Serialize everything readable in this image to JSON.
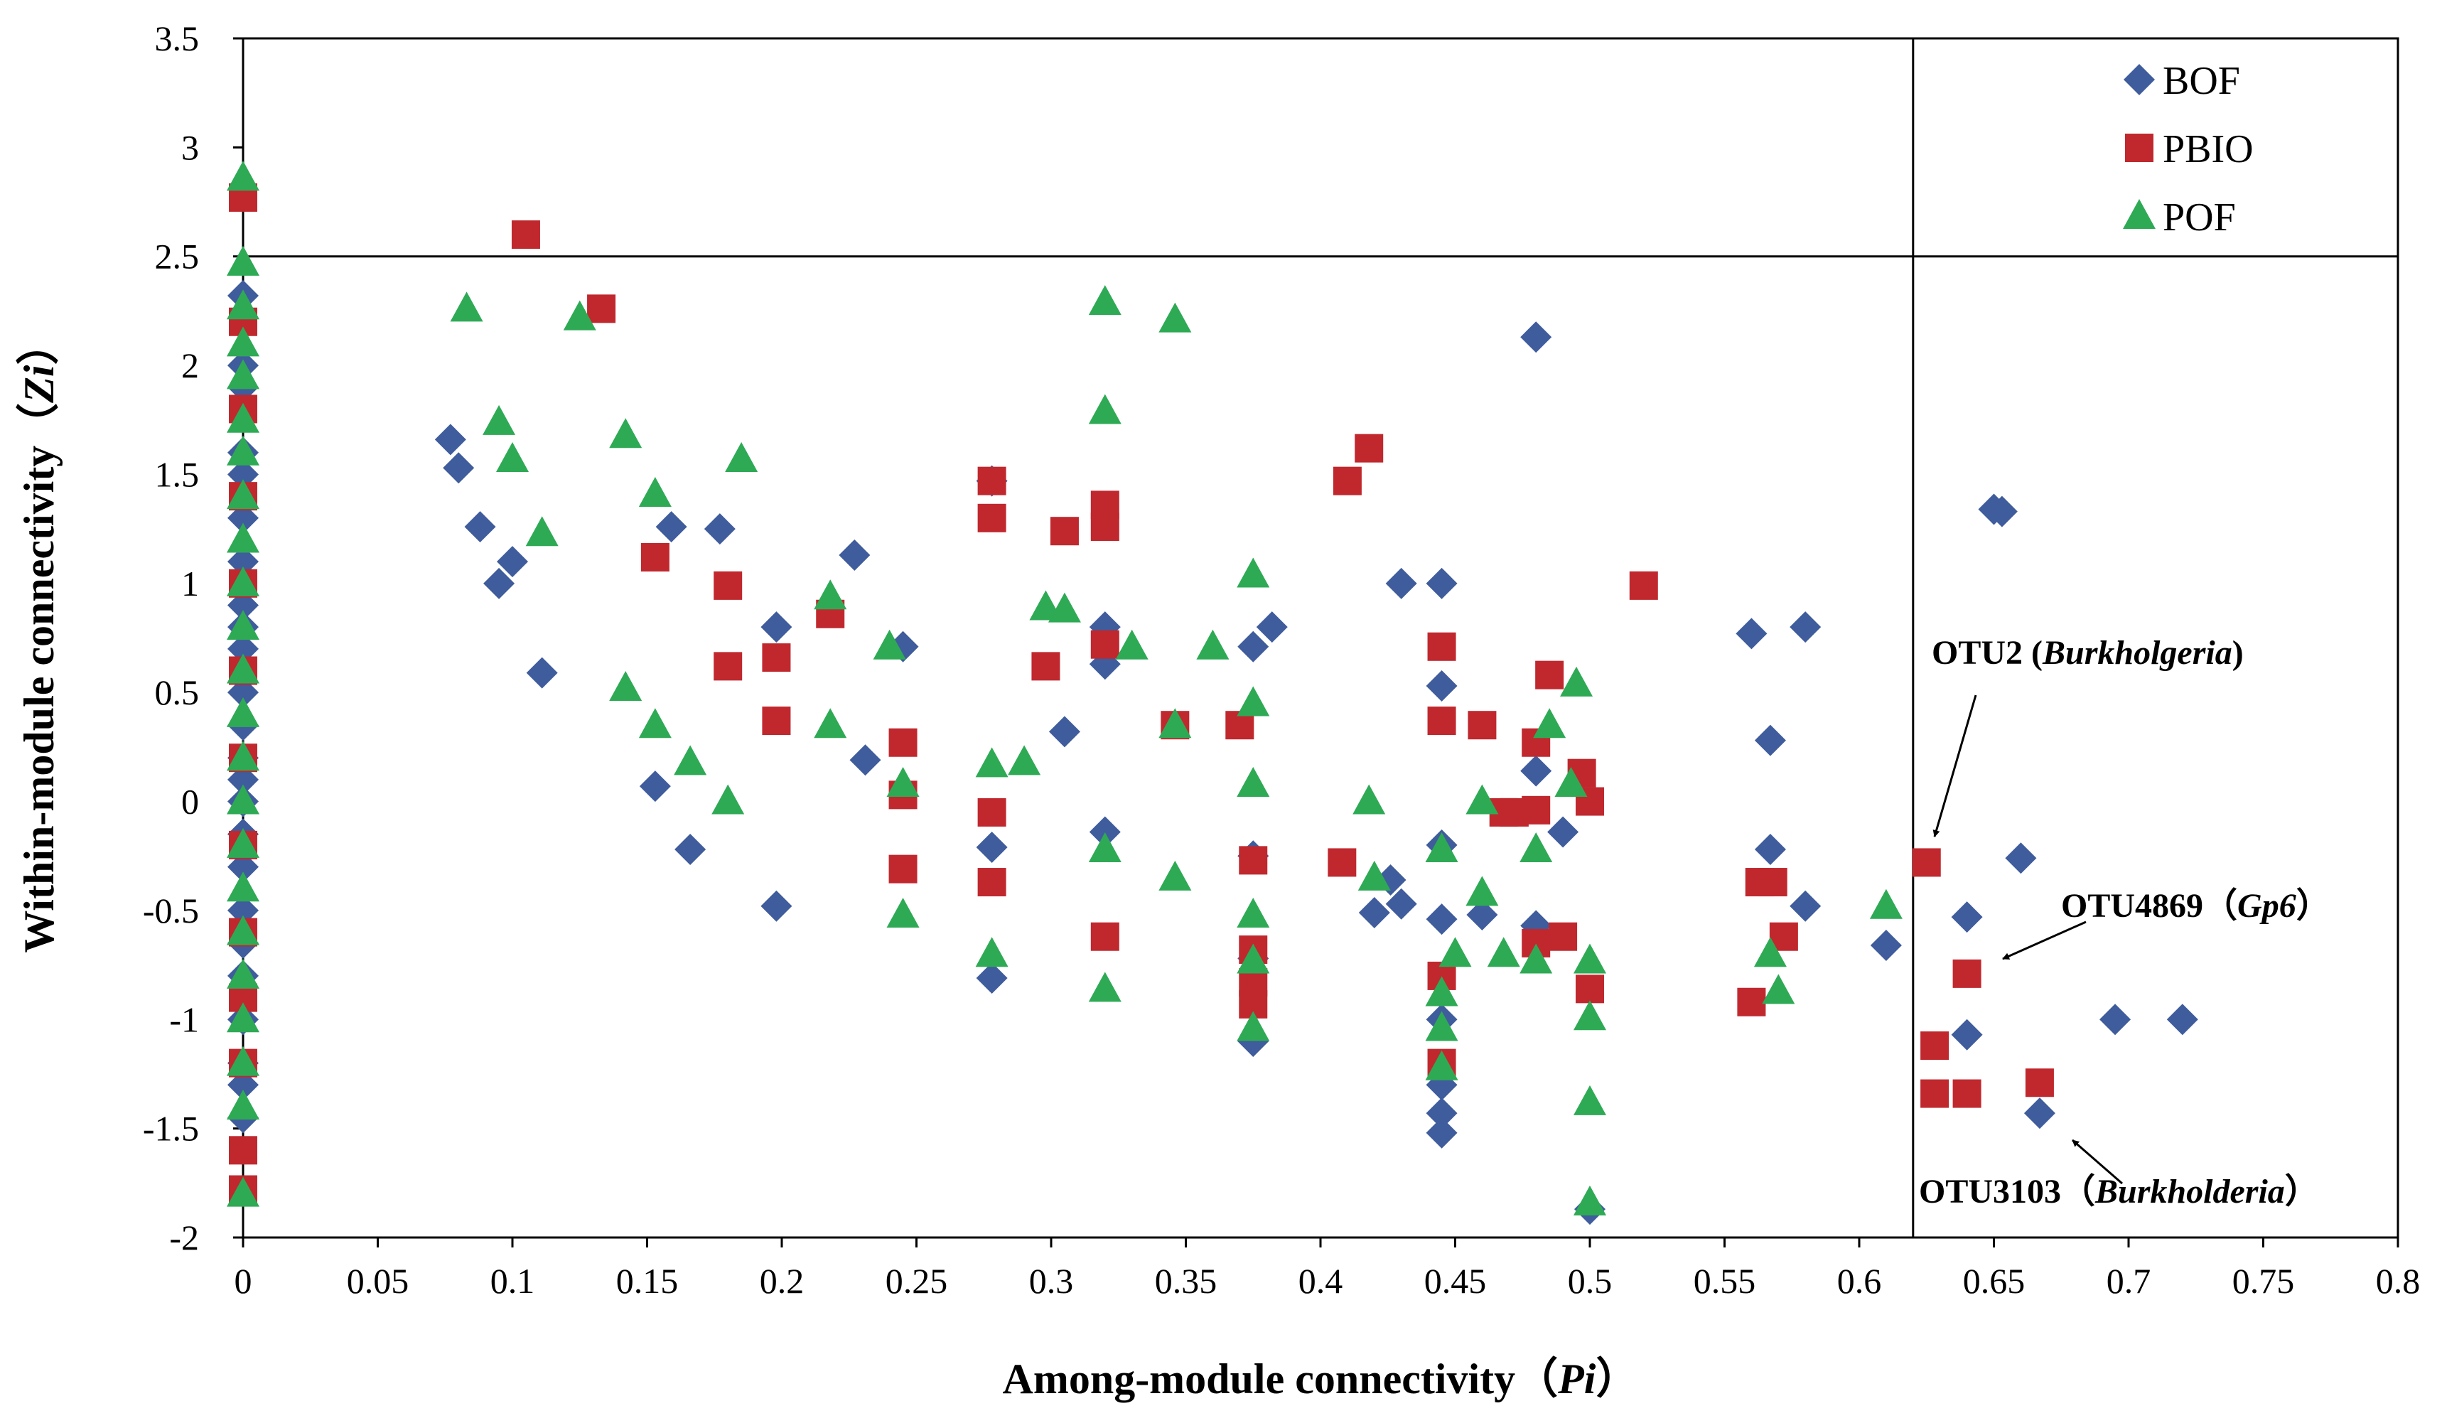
{
  "chart_data": {
    "type": "scatter",
    "title": "",
    "xlabel": "Among-module connectivity（Pi）",
    "xlabel_parts": {
      "text": "Among-module connectivity（",
      "italic": "Pi",
      "close": "）"
    },
    "ylabel": "Within-module connectivity（Zi）",
    "ylabel_parts": {
      "text": "Within-module connectivity（",
      "italic": "Zi",
      "close": "）"
    },
    "xlim": [
      0,
      0.8
    ],
    "ylim": [
      -2,
      3.5
    ],
    "x_ticks": [
      "0",
      "0.05",
      "0.1",
      "0.15",
      "0.2",
      "0.25",
      "0.3",
      "0.35",
      "0.4",
      "0.45",
      "0.5",
      "0.55",
      "0.6",
      "0.65",
      "0.7",
      "0.75",
      "0.8"
    ],
    "y_ticks": [
      "-2",
      "-1.5",
      "-1",
      "-0.5",
      "0",
      "0.5",
      "1",
      "1.5",
      "2",
      "2.5",
      "3",
      "3.5"
    ],
    "grid": false,
    "legend_position": "top-right",
    "thresholds": {
      "pi": 0.62,
      "zi": 2.5
    },
    "series": [
      {
        "name": "BOF",
        "marker": "diamond",
        "color": "#3F5C9C",
        "points": [
          [
            0,
            2.32
          ],
          [
            0,
            2.0
          ],
          [
            0,
            1.9
          ],
          [
            0,
            1.6
          ],
          [
            0,
            1.5
          ],
          [
            0,
            1.3
          ],
          [
            0,
            1.1
          ],
          [
            0,
            0.9
          ],
          [
            0,
            0.8
          ],
          [
            0,
            0.7
          ],
          [
            0,
            0.5
          ],
          [
            0,
            0.35
          ],
          [
            0,
            0.2
          ],
          [
            0,
            0.1
          ],
          [
            0,
            0.0
          ],
          [
            0,
            -0.15
          ],
          [
            0,
            -0.3
          ],
          [
            0,
            -0.5
          ],
          [
            0,
            -0.65
          ],
          [
            0,
            -0.8
          ],
          [
            0,
            -1.0
          ],
          [
            0,
            -1.2
          ],
          [
            0,
            -1.3
          ],
          [
            0,
            -1.45
          ],
          [
            0.077,
            1.66
          ],
          [
            0.08,
            1.53
          ],
          [
            0.088,
            1.26
          ],
          [
            0.095,
            1.0
          ],
          [
            0.1,
            1.1
          ],
          [
            0.111,
            0.59
          ],
          [
            0.153,
            0.07
          ],
          [
            0.159,
            1.26
          ],
          [
            0.166,
            -0.22
          ],
          [
            0.177,
            1.25
          ],
          [
            0.198,
            0.8
          ],
          [
            0.198,
            -0.48
          ],
          [
            0.227,
            1.13
          ],
          [
            0.231,
            0.19
          ],
          [
            0.245,
            0.71
          ],
          [
            0.278,
            1.47
          ],
          [
            0.278,
            -0.21
          ],
          [
            0.278,
            -0.81
          ],
          [
            0.305,
            0.32
          ],
          [
            0.32,
            0.8
          ],
          [
            0.32,
            0.63
          ],
          [
            0.32,
            -0.14
          ],
          [
            0.375,
            0.71
          ],
          [
            0.375,
            -0.25
          ],
          [
            0.375,
            -0.72
          ],
          [
            0.375,
            -1.1
          ],
          [
            0.382,
            0.8
          ],
          [
            0.42,
            -0.51
          ],
          [
            0.426,
            -0.36
          ],
          [
            0.43,
            -0.47
          ],
          [
            0.43,
            1.0
          ],
          [
            0.445,
            1.0
          ],
          [
            0.445,
            0.53
          ],
          [
            0.445,
            -0.2
          ],
          [
            0.445,
            -0.54
          ],
          [
            0.445,
            -1.0
          ],
          [
            0.445,
            -1.3
          ],
          [
            0.445,
            -1.43
          ],
          [
            0.445,
            -1.52
          ],
          [
            0.46,
            -0.52
          ],
          [
            0.48,
            2.13
          ],
          [
            0.48,
            0.14
          ],
          [
            0.48,
            -0.57
          ],
          [
            0.49,
            -0.14
          ],
          [
            0.5,
            -1.87
          ],
          [
            0.56,
            0.77
          ],
          [
            0.567,
            0.28
          ],
          [
            0.567,
            -0.22
          ],
          [
            0.58,
            0.8
          ],
          [
            0.58,
            -0.48
          ],
          [
            0.61,
            -0.66
          ],
          [
            0.64,
            -0.53
          ],
          [
            0.64,
            -1.07
          ],
          [
            0.65,
            1.34
          ],
          [
            0.653,
            1.33
          ],
          [
            0.66,
            -0.26
          ],
          [
            0.667,
            -1.43
          ],
          [
            0.695,
            -1.0
          ],
          [
            0.72,
            -1.0
          ]
        ]
      },
      {
        "name": "PBIO",
        "marker": "square",
        "color": "#C0282E",
        "points": [
          [
            0,
            2.77
          ],
          [
            0,
            2.2
          ],
          [
            0,
            1.8
          ],
          [
            0,
            1.4
          ],
          [
            0,
            1.0
          ],
          [
            0,
            0.6
          ],
          [
            0,
            0.2
          ],
          [
            0,
            -0.2
          ],
          [
            0,
            -0.6
          ],
          [
            0,
            -0.9
          ],
          [
            0,
            -1.2
          ],
          [
            0,
            -1.6
          ],
          [
            0,
            -1.78
          ],
          [
            0.105,
            2.6
          ],
          [
            0.133,
            2.26
          ],
          [
            0.153,
            1.12
          ],
          [
            0.18,
            0.99
          ],
          [
            0.18,
            0.62
          ],
          [
            0.198,
            0.66
          ],
          [
            0.198,
            0.37
          ],
          [
            0.218,
            0.86
          ],
          [
            0.245,
            0.27
          ],
          [
            0.245,
            0.03
          ],
          [
            0.245,
            -0.31
          ],
          [
            0.278,
            1.47
          ],
          [
            0.278,
            1.3
          ],
          [
            0.278,
            -0.05
          ],
          [
            0.278,
            -0.37
          ],
          [
            0.298,
            0.62
          ],
          [
            0.305,
            1.24
          ],
          [
            0.32,
            1.36
          ],
          [
            0.32,
            1.26
          ],
          [
            0.32,
            0.72
          ],
          [
            0.32,
            -0.62
          ],
          [
            0.346,
            0.35
          ],
          [
            0.37,
            0.35
          ],
          [
            0.375,
            -0.27
          ],
          [
            0.375,
            -0.68
          ],
          [
            0.375,
            -0.83
          ],
          [
            0.375,
            -0.93
          ],
          [
            0.408,
            -0.28
          ],
          [
            0.41,
            1.47
          ],
          [
            0.418,
            1.62
          ],
          [
            0.445,
            0.71
          ],
          [
            0.445,
            0.37
          ],
          [
            0.445,
            -0.8
          ],
          [
            0.445,
            -1.2
          ],
          [
            0.46,
            0.35
          ],
          [
            0.468,
            -0.05
          ],
          [
            0.472,
            -0.05
          ],
          [
            0.48,
            0.27
          ],
          [
            0.48,
            -0.04
          ],
          [
            0.48,
            -0.65
          ],
          [
            0.485,
            0.58
          ],
          [
            0.49,
            -0.62
          ],
          [
            0.497,
            0.13
          ],
          [
            0.5,
            0.0
          ],
          [
            0.5,
            -0.86
          ],
          [
            0.52,
            0.99
          ],
          [
            0.56,
            -0.92
          ],
          [
            0.563,
            -0.37
          ],
          [
            0.568,
            -0.37
          ],
          [
            0.572,
            -0.62
          ],
          [
            0.625,
            -0.28
          ],
          [
            0.628,
            -1.12
          ],
          [
            0.628,
            -1.34
          ],
          [
            0.64,
            -0.79
          ],
          [
            0.64,
            -1.34
          ],
          [
            0.667,
            -1.29
          ]
        ]
      },
      {
        "name": "POF",
        "marker": "triangle",
        "color": "#2EAA55",
        "points": [
          [
            0,
            2.86
          ],
          [
            0,
            2.47
          ],
          [
            0,
            2.27
          ],
          [
            0,
            2.1
          ],
          [
            0,
            1.95
          ],
          [
            0,
            1.75
          ],
          [
            0,
            1.6
          ],
          [
            0,
            1.4
          ],
          [
            0,
            1.2
          ],
          [
            0,
            1.0
          ],
          [
            0,
            0.8
          ],
          [
            0,
            0.6
          ],
          [
            0,
            0.4
          ],
          [
            0,
            0.2
          ],
          [
            0,
            0.0
          ],
          [
            0,
            -0.2
          ],
          [
            0,
            -0.4
          ],
          [
            0,
            -0.6
          ],
          [
            0,
            -0.8
          ],
          [
            0,
            -1.0
          ],
          [
            0,
            -1.2
          ],
          [
            0,
            -1.4
          ],
          [
            0,
            -1.8
          ],
          [
            0.083,
            2.26
          ],
          [
            0.095,
            1.74
          ],
          [
            0.1,
            1.57
          ],
          [
            0.111,
            1.23
          ],
          [
            0.125,
            2.22
          ],
          [
            0.142,
            1.68
          ],
          [
            0.142,
            0.52
          ],
          [
            0.153,
            1.41
          ],
          [
            0.153,
            0.35
          ],
          [
            0.166,
            0.18
          ],
          [
            0.18,
            0.0
          ],
          [
            0.185,
            1.57
          ],
          [
            0.218,
            0.94
          ],
          [
            0.218,
            0.35
          ],
          [
            0.24,
            0.71
          ],
          [
            0.245,
            0.08
          ],
          [
            0.245,
            -0.52
          ],
          [
            0.278,
            0.17
          ],
          [
            0.278,
            -0.7
          ],
          [
            0.29,
            0.18
          ],
          [
            0.298,
            0.89
          ],
          [
            0.305,
            0.88
          ],
          [
            0.32,
            2.29
          ],
          [
            0.32,
            1.79
          ],
          [
            0.32,
            -0.22
          ],
          [
            0.32,
            -0.86
          ],
          [
            0.33,
            0.71
          ],
          [
            0.346,
            2.21
          ],
          [
            0.346,
            0.35
          ],
          [
            0.346,
            -0.35
          ],
          [
            0.36,
            0.71
          ],
          [
            0.375,
            1.04
          ],
          [
            0.375,
            0.45
          ],
          [
            0.375,
            0.08
          ],
          [
            0.375,
            -0.52
          ],
          [
            0.375,
            -0.73
          ],
          [
            0.375,
            -1.04
          ],
          [
            0.418,
            0.0
          ],
          [
            0.42,
            -0.35
          ],
          [
            0.445,
            -0.22
          ],
          [
            0.445,
            -0.88
          ],
          [
            0.445,
            -1.04
          ],
          [
            0.445,
            -1.22
          ],
          [
            0.45,
            -0.7
          ],
          [
            0.46,
            0.0
          ],
          [
            0.46,
            -0.42
          ],
          [
            0.468,
            -0.7
          ],
          [
            0.48,
            -0.22
          ],
          [
            0.48,
            -0.73
          ],
          [
            0.485,
            0.35
          ],
          [
            0.493,
            0.08
          ],
          [
            0.495,
            0.54
          ],
          [
            0.5,
            -0.73
          ],
          [
            0.5,
            -0.99
          ],
          [
            0.5,
            -1.38
          ],
          [
            0.5,
            -1.84
          ],
          [
            0.567,
            -0.7
          ],
          [
            0.57,
            -0.87
          ],
          [
            0.61,
            -0.48
          ]
        ]
      }
    ],
    "annotations": [
      {
        "label": "OTU2 (",
        "italic": "Burkholgeria",
        "close": ")",
        "target": [
          0.625,
          -0.28
        ]
      },
      {
        "label": "OTU4869（",
        "italic": "Gp6",
        "close": "）",
        "target": [
          0.64,
          -0.79
        ]
      },
      {
        "label": "OTU3103（",
        "italic": "Burkholderia",
        "close": "）",
        "target": [
          0.667,
          -1.29
        ]
      }
    ]
  }
}
